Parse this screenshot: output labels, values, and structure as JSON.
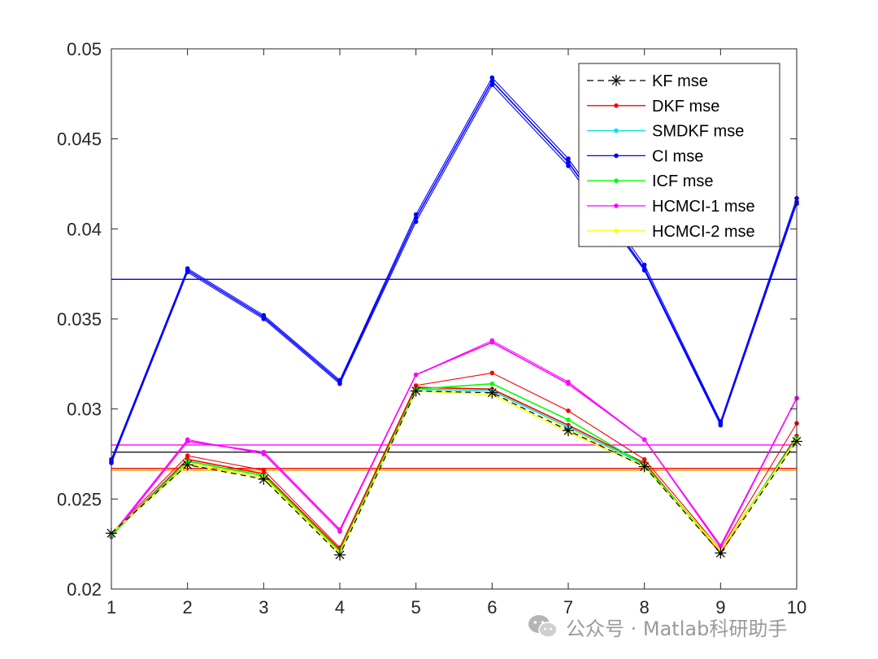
{
  "chart_data": {
    "type": "line",
    "title": "",
    "xlabel": "",
    "ylabel": "",
    "x": [
      1,
      2,
      3,
      4,
      5,
      6,
      7,
      8,
      9,
      10
    ],
    "xlim": [
      1,
      10
    ],
    "ylim": [
      0.02,
      0.05
    ],
    "x_ticks": [
      "1",
      "2",
      "3",
      "4",
      "5",
      "6",
      "7",
      "8",
      "9",
      "10"
    ],
    "y_ticks": [
      0.02,
      0.025,
      0.03,
      0.035,
      0.04,
      0.045,
      0.05
    ],
    "y_tick_labels": [
      "0.02",
      "0.025",
      "0.03",
      "0.035",
      "0.04",
      "0.045",
      "0.05"
    ],
    "grid": false,
    "legend_position": "top-right",
    "series": [
      {
        "name": "KF mse",
        "color": "#000000",
        "style": "dashed",
        "marker": "asterisk",
        "values": [
          0.0231,
          0.0269,
          0.0261,
          0.0219,
          0.031,
          0.0309,
          0.0288,
          0.0268,
          0.022,
          0.0282
        ],
        "mean": 0.0266
      },
      {
        "name": "DKF mse",
        "color": "#ff0000",
        "style": "solid",
        "marker": "dot",
        "values": [
          0.023,
          0.0272,
          0.0264,
          0.0222,
          0.0312,
          0.0311,
          0.0291,
          0.027,
          0.022,
          0.0285
        ],
        "mean": 0.0267
      },
      {
        "name": "SMDKF mse",
        "color": "#00e5e5",
        "style": "solid",
        "marker": "dot",
        "values": [
          0.023,
          0.0271,
          0.0263,
          0.0221,
          0.0311,
          0.031,
          0.029,
          0.0269,
          0.0221,
          0.0284
        ],
        "mean": 0.0267
      },
      {
        "name": "CI mse",
        "color": "#0000ff",
        "style": "solid",
        "marker": "dot",
        "values": [
          0.0271,
          0.0377,
          0.0351,
          0.0315,
          0.0406,
          0.0482,
          0.0437,
          0.0378,
          0.0292,
          0.0415
        ],
        "mean": 0.0372
      },
      {
        "name": "ICF mse",
        "color": "#00ff00",
        "style": "solid",
        "marker": "dot",
        "values": [
          0.023,
          0.0271,
          0.0263,
          0.0221,
          0.0311,
          0.0314,
          0.0294,
          0.0269,
          0.0221,
          0.0284
        ],
        "mean": 0.0267
      },
      {
        "name": "HCMCI-1 mse",
        "color": "#ff00ff",
        "style": "solid",
        "marker": "dot",
        "values": [
          0.0229,
          0.0282,
          0.0276,
          0.0233,
          0.0319,
          0.0337,
          0.0314,
          0.0283,
          0.0224,
          0.0306
        ],
        "mean": 0.028
      },
      {
        "name": "HCMCI-2 mse",
        "color": "#ffff00",
        "style": "solid",
        "marker": "dot",
        "values": [
          0.0231,
          0.0269,
          0.0262,
          0.022,
          0.031,
          0.0308,
          0.0287,
          0.0268,
          0.0221,
          0.0283
        ],
        "mean": 0.0266
      }
    ],
    "extra_curves": [
      {
        "color": "#0000ff",
        "values": [
          0.027,
          0.0376,
          0.035,
          0.0314,
          0.0404,
          0.048,
          0.0435,
          0.0377,
          0.0291,
          0.0414
        ]
      },
      {
        "color": "#0000ff",
        "values": [
          0.0272,
          0.0378,
          0.0352,
          0.0316,
          0.0408,
          0.0484,
          0.0439,
          0.038,
          0.0293,
          0.0417
        ]
      },
      {
        "color": "#ff0000",
        "values": [
          0.0231,
          0.0274,
          0.0266,
          0.0223,
          0.0313,
          0.032,
          0.0299,
          0.0272,
          0.0222,
          0.0292
        ]
      },
      {
        "color": "#ff00ff",
        "values": [
          0.023,
          0.0283,
          0.0275,
          0.0232,
          0.0319,
          0.0338,
          0.0315,
          0.0283,
          0.0223,
          0.0306
        ]
      },
      {
        "color": "#ffff00",
        "values": [
          0.0231,
          0.027,
          0.0263,
          0.0221,
          0.0311,
          0.0311,
          0.0289,
          0.0269,
          0.0222,
          0.0284
        ]
      }
    ],
    "reference_lines": [
      {
        "color": "#0000ff",
        "y": 0.0372
      },
      {
        "color": "#ff00ff",
        "y": 0.028
      },
      {
        "color": "#000000",
        "y": 0.0276
      },
      {
        "color": "#ff0000",
        "y": 0.0267
      },
      {
        "color": "#ffa500",
        "y": 0.0266
      }
    ]
  },
  "watermark": {
    "text": "公众号 · Matlab科研助手",
    "icon": "wechat-icon"
  }
}
